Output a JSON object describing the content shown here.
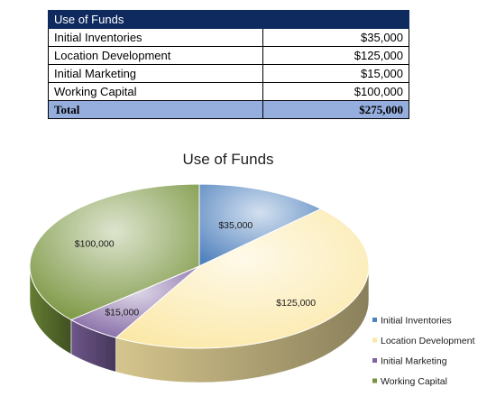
{
  "table": {
    "header": "Use of Funds",
    "rows": [
      {
        "label": "Initial Inventories",
        "amount": "$35,000"
      },
      {
        "label": "Location Development",
        "amount": "$125,000"
      },
      {
        "label": "Initial Marketing",
        "amount": "$15,000"
      },
      {
        "label": "Working Capital",
        "amount": "$100,000"
      }
    ],
    "total": {
      "label": "Total",
      "amount": "$275,000"
    }
  },
  "chart_data": {
    "type": "pie",
    "title": "Use of Funds",
    "categories": [
      "Initial Inventories",
      "Location Development",
      "Initial Marketing",
      "Working Capital"
    ],
    "values": [
      35000,
      125000,
      15000,
      100000
    ],
    "data_labels": [
      "$35,000",
      "$125,000",
      "$15,000",
      "$100,000"
    ],
    "colors": [
      "#4f81bd",
      "#fbe8a6",
      "#8064a2",
      "#77933c"
    ],
    "legend_position": "right",
    "style": "3d"
  }
}
